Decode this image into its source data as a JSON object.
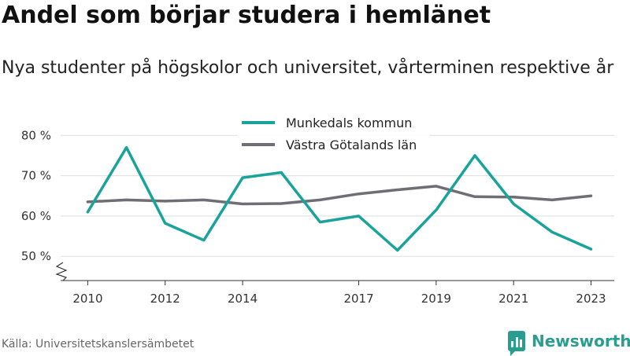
{
  "header": {
    "title": "Andel som börjar studera i hemlänet",
    "subtitle": "Nya studenter på högskolor och universitet, vårterminen respektive år"
  },
  "footer": {
    "source": "Källa: Universitetskanslersämbetet",
    "brand": "Newsworthy"
  },
  "colors": {
    "munkedal": "#1aa39a",
    "vastra_gotaland": "#6e6e74",
    "grid": "#dddddd",
    "axis": "#333333",
    "brand": "#2a9d8f"
  },
  "chart_data": {
    "type": "line",
    "x": [
      2010,
      2011,
      2012,
      2013,
      2014,
      2015,
      2016,
      2017,
      2018,
      2019,
      2020,
      2021,
      2022,
      2023
    ],
    "series": [
      {
        "name": "Munkedals kommun",
        "values": [
          61,
          77,
          58.2,
          54,
          69.5,
          70.8,
          58.5,
          60,
          51.5,
          61.5,
          75,
          63,
          56,
          51.8
        ]
      },
      {
        "name": "Västra Götalands län",
        "values": [
          63.5,
          64,
          63.7,
          64,
          63,
          63.1,
          64,
          65.5,
          66.5,
          67.4,
          64.8,
          64.7,
          64,
          65
        ]
      }
    ],
    "xticks": [
      2010,
      2012,
      2014,
      2017,
      2019,
      2021,
      2023
    ],
    "yticks": [
      50,
      60,
      70,
      80
    ],
    "ytick_labels": [
      "50 %",
      "60 %",
      "70 %",
      "80 %"
    ],
    "xlim": [
      2009.3,
      2023.6
    ],
    "ylim": [
      44,
      82
    ],
    "xlabel": "",
    "ylabel": "",
    "grid": "horizontal",
    "legend_position": "top-center",
    "axis_break": true
  }
}
